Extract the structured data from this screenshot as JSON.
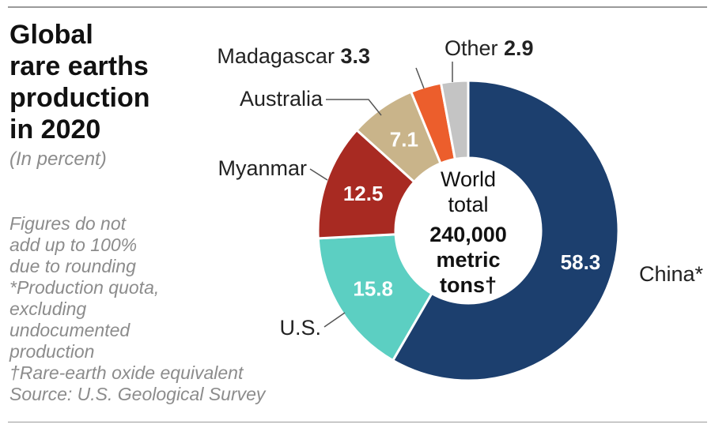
{
  "title_lines": [
    "Global",
    "rare earths",
    "production",
    "in 2020"
  ],
  "subtitle": "(In percent)",
  "notes": [
    "Figures do not",
    "add up to 100%",
    "due to rounding",
    "*Production quota,",
    "excluding",
    "undocumented",
    "production",
    "†Rare-earth oxide equivalent",
    "Source: U.S. Geological Survey"
  ],
  "center_text": {
    "line1": "World",
    "line2": "total",
    "line3": "240,000",
    "line4": "metric",
    "line5": "tons†"
  },
  "chart_data": {
    "type": "pie",
    "donut": true,
    "title": "Global rare earths production in 2020",
    "unit": "(In percent)",
    "slices": [
      {
        "label": "China*",
        "value": 58.3,
        "color": "#1c3f6e"
      },
      {
        "label": "U.S.",
        "value": 15.8,
        "color": "#5ccfc2"
      },
      {
        "label": "Myanmar",
        "value": 12.5,
        "color": "#a82a22"
      },
      {
        "label": "Australia",
        "value": 7.1,
        "color": "#c9b48a"
      },
      {
        "label": "Madagascar",
        "value": 3.3,
        "color": "#ec5e2c"
      },
      {
        "label": "Other",
        "value": 2.9,
        "color": "#c4c4c4"
      }
    ]
  }
}
